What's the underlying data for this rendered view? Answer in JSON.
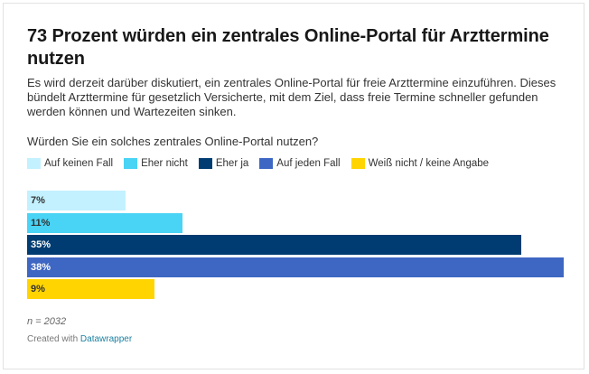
{
  "header": {
    "title": "73 Prozent würden ein zentrales Online-Portal für Arzttermine nutzen",
    "subtitle": "Es wird derzeit darüber diskutiert, ein zentrales Online-Portal für freie Arzttermine einzuführen. Dieses bündelt Arzttermine für gesetzlich Versicherte, mit dem Ziel, dass freie Termine schneller gefunden werden können und Wartezeiten sinken.",
    "question": "Würden Sie ein solches zentrales Online-Portal nutzen?"
  },
  "chart_data": {
    "type": "bar",
    "orientation": "horizontal",
    "categories": [
      "Auf keinen Fall",
      "Eher nicht",
      "Eher ja",
      "Auf jeden Fall",
      "Weiß nicht / keine Angabe"
    ],
    "values": [
      7,
      11,
      35,
      38,
      9
    ],
    "value_labels": [
      "7%",
      "11%",
      "35%",
      "38%",
      "9%"
    ],
    "colors": [
      "#c3f1ff",
      "#49d3f5",
      "#003c71",
      "#3e67c3",
      "#ffd400"
    ],
    "label_colors": [
      "#333333",
      "#333333",
      "#ffffff",
      "#ffffff",
      "#333333"
    ],
    "xlim": [
      0,
      38
    ],
    "legend_position": "top",
    "grid": false
  },
  "footer": {
    "note": "n = 2032",
    "credit_prefix": "Created with ",
    "credit_link": "Datawrapper"
  }
}
